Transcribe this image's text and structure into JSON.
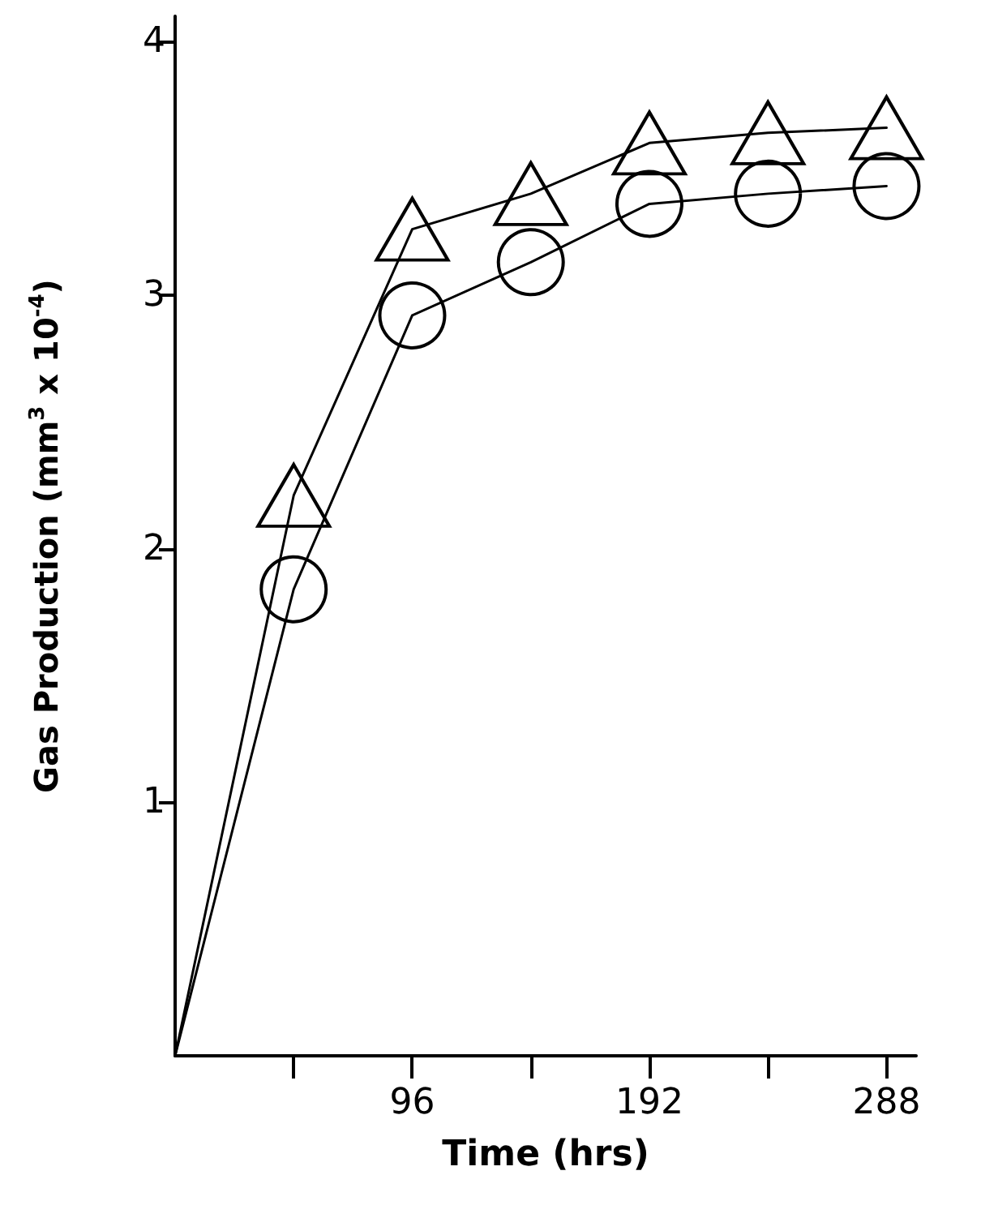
{
  "chart_data": {
    "type": "line",
    "xlabel": "Time (hrs)",
    "ylabel": "Gas Production (mm$^{3}$ x 10$^{-4}$)",
    "x": [
      0,
      48,
      96,
      144,
      192,
      240,
      288
    ],
    "series": [
      {
        "color": "#000000",
        "marker": "triangle",
        "values": [
          0,
          2.21,
          3.26,
          3.4,
          3.6,
          3.64,
          3.66
        ]
      },
      {
        "color": "#000000",
        "marker": "circle",
        "values": [
          0,
          1.84,
          2.92,
          3.13,
          3.36,
          3.4,
          3.43
        ]
      }
    ],
    "xlim": [
      0,
      300
    ],
    "xticks": [
      {
        "value": 48,
        "label": null
      },
      96,
      {
        "value": 144,
        "label": null
      },
      192,
      {
        "value": 240,
        "label": null
      },
      288
    ],
    "ylim": [
      0,
      4.1
    ],
    "yticks": [
      1,
      2,
      3,
      4
    ],
    "grid": false,
    "line_style": "solid"
  }
}
